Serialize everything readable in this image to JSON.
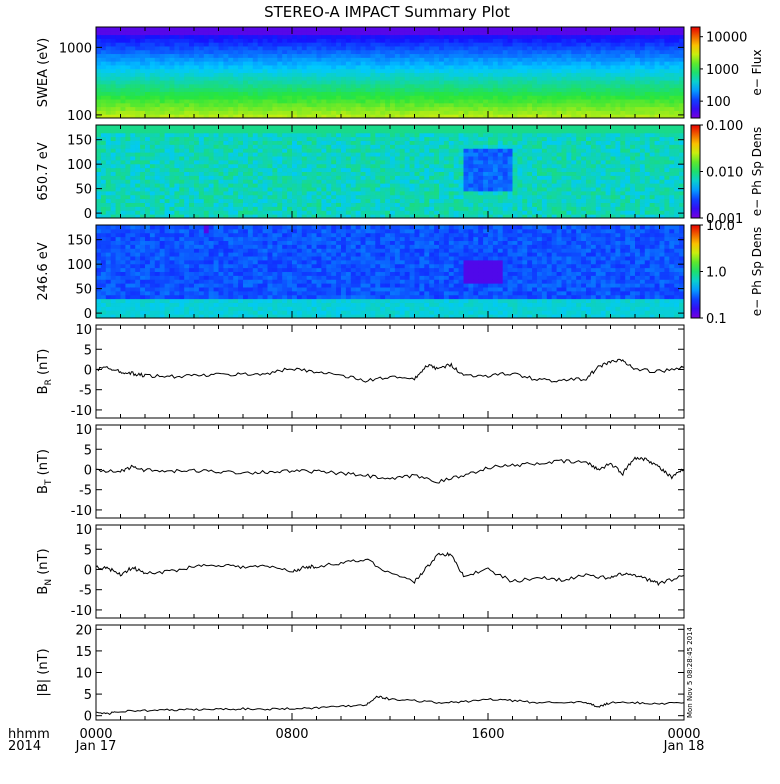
{
  "title": "STEREO-A IMPACT Summary Plot",
  "timestamp": "Mon Nov 5 08:28:45 2014",
  "footer": {
    "left_label_1": "hhmm",
    "left_label_2": "2014",
    "ticks": [
      {
        "time": "0000",
        "date": "Jan 17",
        "hours": 0
      },
      {
        "time": "0800",
        "date": "",
        "hours": 8
      },
      {
        "time": "1600",
        "date": "",
        "hours": 16
      },
      {
        "time": "0000",
        "date": "Jan 18",
        "hours": 24
      }
    ]
  },
  "chart_data": [
    {
      "type": "heatmap",
      "ylabel": "SWEA (eV)",
      "y_scale": "log",
      "yticks": [
        {
          "value": 100,
          "label": "100"
        },
        {
          "value": 1000,
          "label": "1000"
        }
      ],
      "ylim": [
        90,
        2000
      ],
      "colorbar": {
        "label": "e− Flux",
        "scale": "log",
        "range": [
          30,
          20000
        ],
        "ticks": [
          {
            "value": 100,
            "label": "100"
          },
          {
            "value": 1000,
            "label": "1000"
          },
          {
            "value": 10000,
            "label": "10000"
          }
        ]
      }
    },
    {
      "type": "heatmap",
      "ylabel": "650.7 eV",
      "y_scale": "linear",
      "yticks": [
        {
          "value": 0,
          "label": "0"
        },
        {
          "value": 50,
          "label": "50"
        },
        {
          "value": 100,
          "label": "100"
        },
        {
          "value": 150,
          "label": "150"
        }
      ],
      "ylim": [
        -10,
        180
      ],
      "colorbar": {
        "label": "e− Ph Sp Dens",
        "scale": "log",
        "range": [
          0.001,
          0.1
        ],
        "ticks": [
          {
            "value": 0.001,
            "label": "0.001"
          },
          {
            "value": 0.01,
            "label": "0.010"
          },
          {
            "value": 0.1,
            "label": "0.100"
          }
        ]
      }
    },
    {
      "type": "heatmap",
      "ylabel": "246.6 eV",
      "y_scale": "linear",
      "yticks": [
        {
          "value": 0,
          "label": "0"
        },
        {
          "value": 50,
          "label": "50"
        },
        {
          "value": 100,
          "label": "100"
        },
        {
          "value": 150,
          "label": "150"
        }
      ],
      "ylim": [
        -10,
        180
      ],
      "colorbar": {
        "label": "e− Ph Sp Dens",
        "scale": "log",
        "range": [
          0.1,
          10
        ],
        "ticks": [
          {
            "value": 0.1,
            "label": "0.1"
          },
          {
            "value": 1,
            "label": "1.0"
          },
          {
            "value": 10,
            "label": "10.0"
          }
        ]
      }
    },
    {
      "type": "line",
      "ylabel": "B",
      "ylabel_sub": "R",
      "ylabel_unit": "(nT)",
      "ylim": [
        -12,
        11
      ],
      "yticks": [
        -10,
        -5,
        0,
        5,
        10
      ],
      "x_hours": [
        0,
        0.5,
        1,
        1.5,
        2,
        3,
        4,
        5,
        6,
        7,
        8,
        9,
        10,
        11,
        12,
        13,
        13.5,
        14,
        14.5,
        15,
        16,
        17,
        18,
        19,
        20,
        20.5,
        21,
        21.5,
        22,
        23,
        24
      ],
      "values": [
        0,
        0.5,
        -0.5,
        -1,
        -1.5,
        -1.8,
        -1.5,
        -1.3,
        -1.2,
        -1.0,
        0.2,
        -0.5,
        -1.5,
        -2.8,
        -1.8,
        -2.5,
        1.0,
        0.2,
        1.2,
        -1.5,
        -1.5,
        -1.0,
        -2.5,
        -2.8,
        -2.2,
        0.5,
        2.0,
        2.2,
        0.0,
        -0.5,
        0.5
      ]
    },
    {
      "type": "line",
      "ylabel": "B",
      "ylabel_sub": "T",
      "ylabel_unit": "(nT)",
      "ylim": [
        -12,
        11
      ],
      "yticks": [
        -10,
        -5,
        0,
        5,
        10
      ],
      "x_hours": [
        0,
        1,
        1.5,
        2,
        3,
        4,
        5,
        6,
        7,
        8,
        9,
        10,
        11,
        12,
        13,
        14,
        15,
        16,
        17,
        18,
        19,
        20,
        20.5,
        21,
        21.5,
        22,
        22.5,
        23,
        23.5,
        24
      ],
      "values": [
        -0.3,
        -0.5,
        0.8,
        -0.2,
        -0.5,
        -0.3,
        -0.5,
        -0.8,
        -0.6,
        -0.4,
        -0.5,
        -1.0,
        -1.5,
        -2.5,
        -1.5,
        -3.0,
        -1.5,
        0.5,
        1.0,
        1.5,
        2.0,
        1.8,
        0.0,
        1.5,
        -1.0,
        3.0,
        2.5,
        0.5,
        -2.0,
        0.0
      ]
    },
    {
      "type": "line",
      "ylabel": "B",
      "ylabel_sub": "N",
      "ylabel_unit": "(nT)",
      "ylim": [
        -12,
        11
      ],
      "yticks": [
        -10,
        -5,
        0,
        5,
        10
      ],
      "x_hours": [
        0,
        0.5,
        1,
        1.5,
        2,
        3,
        4,
        5,
        6,
        7,
        8,
        8.5,
        9,
        10,
        11,
        12,
        13,
        13.5,
        14,
        14.5,
        15,
        16,
        17,
        18,
        19,
        20,
        21,
        21.5,
        22,
        22.5,
        23,
        24
      ],
      "values": [
        0.5,
        0.3,
        -1.2,
        0.5,
        -1.0,
        -0.5,
        0.8,
        1.2,
        0.6,
        0.8,
        -0.5,
        0.5,
        0.8,
        1.5,
        2.5,
        -0.8,
        -3.0,
        0.5,
        4.0,
        3.5,
        -1.5,
        0.0,
        -3.0,
        -2.0,
        -2.5,
        -1.5,
        -2.2,
        -1.0,
        -1.5,
        -2.5,
        -3.5,
        -1.5
      ]
    },
    {
      "type": "line",
      "ylabel": "|B| (nT)",
      "ylim": [
        -1,
        21
      ],
      "yticks": [
        0,
        5,
        10,
        15,
        20
      ],
      "x_hours": [
        0,
        0.5,
        1,
        2,
        3,
        4,
        5,
        6,
        7,
        8,
        9,
        10,
        11,
        11.5,
        12,
        13,
        14,
        15,
        16,
        17,
        18,
        19,
        20,
        20.5,
        21,
        22,
        23,
        24
      ],
      "values": [
        0.8,
        0.5,
        1.0,
        1.2,
        1.3,
        1.4,
        1.5,
        1.6,
        1.5,
        1.7,
        1.8,
        2.2,
        2.5,
        4.5,
        3.8,
        3.5,
        3.0,
        3.2,
        3.8,
        3.5,
        3.0,
        3.2,
        3.0,
        2.0,
        3.0,
        3.0,
        2.8,
        3.0
      ]
    }
  ]
}
